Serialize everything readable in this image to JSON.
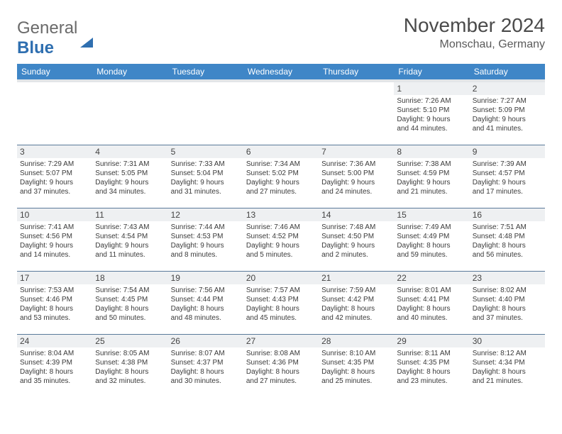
{
  "brand": {
    "part1": "General",
    "part2": "Blue"
  },
  "title": "November 2024",
  "location": "Monschau, Germany",
  "colors": {
    "header_bg": "#3f86c7",
    "header_text": "#ffffff",
    "daynum_bg": "#eef0f2",
    "row_border": "#5a7a9a",
    "subheader_bg": "#e2e5e8",
    "brand_blue": "#2f6fb0",
    "text": "#3a3a3a"
  },
  "day_headers": [
    "Sunday",
    "Monday",
    "Tuesday",
    "Wednesday",
    "Thursday",
    "Friday",
    "Saturday"
  ],
  "weeks": [
    [
      null,
      null,
      null,
      null,
      null,
      {
        "n": "1",
        "sunrise": "7:26 AM",
        "sunset": "5:10 PM",
        "dl_h": "9",
        "dl_m": "44"
      },
      {
        "n": "2",
        "sunrise": "7:27 AM",
        "sunset": "5:09 PM",
        "dl_h": "9",
        "dl_m": "41"
      }
    ],
    [
      {
        "n": "3",
        "sunrise": "7:29 AM",
        "sunset": "5:07 PM",
        "dl_h": "9",
        "dl_m": "37"
      },
      {
        "n": "4",
        "sunrise": "7:31 AM",
        "sunset": "5:05 PM",
        "dl_h": "9",
        "dl_m": "34"
      },
      {
        "n": "5",
        "sunrise": "7:33 AM",
        "sunset": "5:04 PM",
        "dl_h": "9",
        "dl_m": "31"
      },
      {
        "n": "6",
        "sunrise": "7:34 AM",
        "sunset": "5:02 PM",
        "dl_h": "9",
        "dl_m": "27"
      },
      {
        "n": "7",
        "sunrise": "7:36 AM",
        "sunset": "5:00 PM",
        "dl_h": "9",
        "dl_m": "24"
      },
      {
        "n": "8",
        "sunrise": "7:38 AM",
        "sunset": "4:59 PM",
        "dl_h": "9",
        "dl_m": "21"
      },
      {
        "n": "9",
        "sunrise": "7:39 AM",
        "sunset": "4:57 PM",
        "dl_h": "9",
        "dl_m": "17"
      }
    ],
    [
      {
        "n": "10",
        "sunrise": "7:41 AM",
        "sunset": "4:56 PM",
        "dl_h": "9",
        "dl_m": "14"
      },
      {
        "n": "11",
        "sunrise": "7:43 AM",
        "sunset": "4:54 PM",
        "dl_h": "9",
        "dl_m": "11"
      },
      {
        "n": "12",
        "sunrise": "7:44 AM",
        "sunset": "4:53 PM",
        "dl_h": "9",
        "dl_m": "8"
      },
      {
        "n": "13",
        "sunrise": "7:46 AM",
        "sunset": "4:52 PM",
        "dl_h": "9",
        "dl_m": "5"
      },
      {
        "n": "14",
        "sunrise": "7:48 AM",
        "sunset": "4:50 PM",
        "dl_h": "9",
        "dl_m": "2"
      },
      {
        "n": "15",
        "sunrise": "7:49 AM",
        "sunset": "4:49 PM",
        "dl_h": "8",
        "dl_m": "59"
      },
      {
        "n": "16",
        "sunrise": "7:51 AM",
        "sunset": "4:48 PM",
        "dl_h": "8",
        "dl_m": "56"
      }
    ],
    [
      {
        "n": "17",
        "sunrise": "7:53 AM",
        "sunset": "4:46 PM",
        "dl_h": "8",
        "dl_m": "53"
      },
      {
        "n": "18",
        "sunrise": "7:54 AM",
        "sunset": "4:45 PM",
        "dl_h": "8",
        "dl_m": "50"
      },
      {
        "n": "19",
        "sunrise": "7:56 AM",
        "sunset": "4:44 PM",
        "dl_h": "8",
        "dl_m": "48"
      },
      {
        "n": "20",
        "sunrise": "7:57 AM",
        "sunset": "4:43 PM",
        "dl_h": "8",
        "dl_m": "45"
      },
      {
        "n": "21",
        "sunrise": "7:59 AM",
        "sunset": "4:42 PM",
        "dl_h": "8",
        "dl_m": "42"
      },
      {
        "n": "22",
        "sunrise": "8:01 AM",
        "sunset": "4:41 PM",
        "dl_h": "8",
        "dl_m": "40"
      },
      {
        "n": "23",
        "sunrise": "8:02 AM",
        "sunset": "4:40 PM",
        "dl_h": "8",
        "dl_m": "37"
      }
    ],
    [
      {
        "n": "24",
        "sunrise": "8:04 AM",
        "sunset": "4:39 PM",
        "dl_h": "8",
        "dl_m": "35"
      },
      {
        "n": "25",
        "sunrise": "8:05 AM",
        "sunset": "4:38 PM",
        "dl_h": "8",
        "dl_m": "32"
      },
      {
        "n": "26",
        "sunrise": "8:07 AM",
        "sunset": "4:37 PM",
        "dl_h": "8",
        "dl_m": "30"
      },
      {
        "n": "27",
        "sunrise": "8:08 AM",
        "sunset": "4:36 PM",
        "dl_h": "8",
        "dl_m": "27"
      },
      {
        "n": "28",
        "sunrise": "8:10 AM",
        "sunset": "4:35 PM",
        "dl_h": "8",
        "dl_m": "25"
      },
      {
        "n": "29",
        "sunrise": "8:11 AM",
        "sunset": "4:35 PM",
        "dl_h": "8",
        "dl_m": "23"
      },
      {
        "n": "30",
        "sunrise": "8:12 AM",
        "sunset": "4:34 PM",
        "dl_h": "8",
        "dl_m": "21"
      }
    ]
  ]
}
